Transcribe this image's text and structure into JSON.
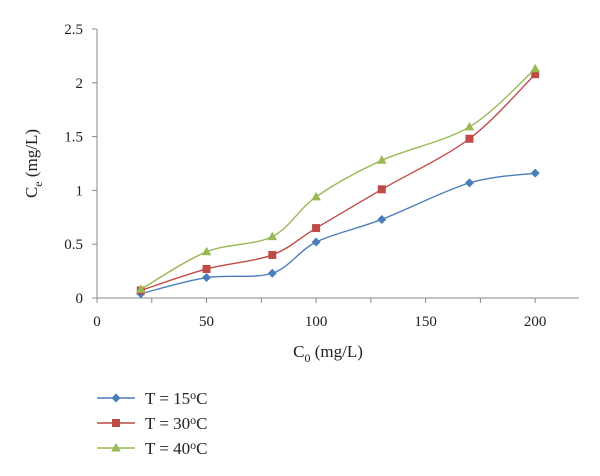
{
  "chart_data": {
    "type": "line",
    "xlabel": {
      "main": "C",
      "sub": "0",
      "unit": " (mg/L)"
    },
    "ylabel": {
      "main": "C",
      "sub": "e",
      "unit": " (mg/L)"
    },
    "xlim": [
      0,
      220
    ],
    "ylim": [
      0,
      2.5
    ],
    "xticks": [
      "0",
      "50",
      "100",
      "150",
      "200"
    ],
    "yticks": [
      "0",
      "0.5",
      "1",
      "1.5",
      "2",
      "2.5"
    ],
    "x": [
      20,
      50,
      80,
      100,
      130,
      170,
      200
    ],
    "series": [
      {
        "name": {
          "pre": "T = 15",
          "sup": "o",
          "post": "C"
        },
        "marker": "diamond",
        "color": "#4a7ebb",
        "values": [
          0.04,
          0.19,
          0.23,
          0.52,
          0.73,
          1.07,
          1.16
        ]
      },
      {
        "name": {
          "pre": "T = 30",
          "sup": "o",
          "post": "C"
        },
        "marker": "square",
        "color": "#be4b48",
        "values": [
          0.07,
          0.27,
          0.4,
          0.65,
          1.01,
          1.48,
          2.08
        ]
      },
      {
        "name": {
          "pre": "T = 40",
          "sup": "o",
          "post": "C"
        },
        "marker": "triangle",
        "color": "#98b954",
        "values": [
          0.08,
          0.43,
          0.57,
          0.94,
          1.28,
          1.59,
          2.13
        ]
      }
    ],
    "grid": false,
    "legend": "bottom-left"
  }
}
